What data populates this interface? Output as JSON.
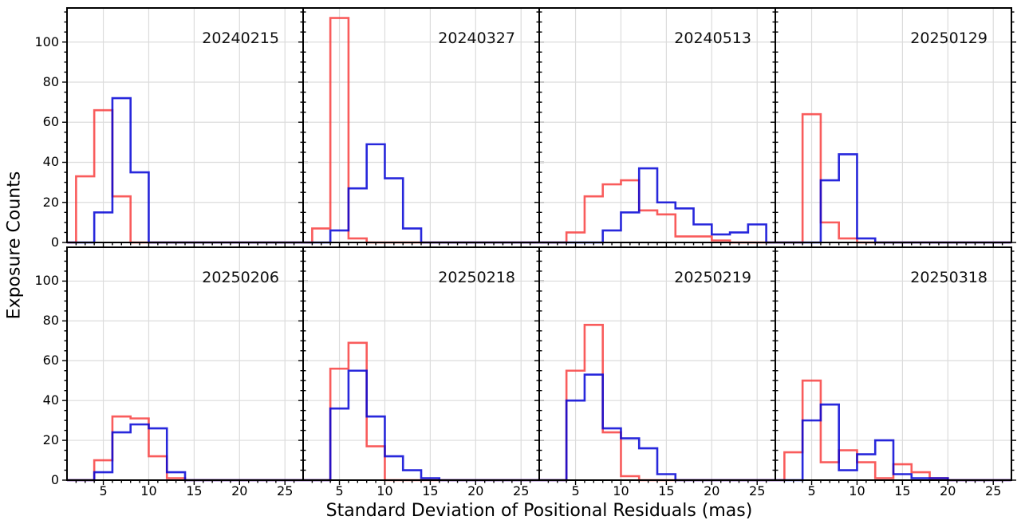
{
  "figure": {
    "xlabel": "Standard Deviation of Positional Residuals (mas)",
    "ylabel": "Exposure Counts"
  },
  "chart_data": {
    "type": "histogram",
    "description": "2x4 grid of overlaid step histograms, one panel per observation date",
    "xlabel": "Standard Deviation of Positional Residuals (mas)",
    "ylabel": "Exposure Counts",
    "xlim": [
      1,
      27
    ],
    "ylim": [
      0,
      117
    ],
    "x_major_ticks": [
      5,
      10,
      15,
      20,
      25
    ],
    "y_major_ticks": [
      0,
      20,
      40,
      60,
      80,
      100
    ],
    "x_minor_step": 1,
    "y_minor_step": 5,
    "grid": true,
    "bin_width": 2,
    "series_colors": {
      "red": "#f84040",
      "blue": "#0202d6"
    },
    "grid_color": "#dcdcdc",
    "spine_color": "#000000",
    "panels": [
      {
        "date": "20240215",
        "red": {
          "bin_start": 2,
          "counts": [
            33,
            66,
            23
          ]
        },
        "blue": {
          "bin_start": 4,
          "counts": [
            15,
            72,
            35
          ]
        }
      },
      {
        "date": "20240327",
        "red": {
          "bin_start": 2,
          "counts": [
            7,
            112,
            2
          ]
        },
        "blue": {
          "bin_start": 4,
          "counts": [
            6,
            27,
            49,
            32,
            7
          ]
        }
      },
      {
        "date": "20240513",
        "red": {
          "bin_start": 4,
          "counts": [
            5,
            23,
            29,
            31,
            16,
            14,
            3,
            3,
            1
          ]
        },
        "blue": {
          "bin_start": 8,
          "counts": [
            6,
            15,
            37,
            20,
            17,
            9,
            4,
            5,
            9
          ]
        }
      },
      {
        "date": "20250129",
        "red": {
          "bin_start": 4,
          "counts": [
            64,
            10,
            2
          ]
        },
        "blue": {
          "bin_start": 6,
          "counts": [
            31,
            44,
            2
          ]
        }
      },
      {
        "date": "20250206",
        "red": {
          "bin_start": 4,
          "counts": [
            10,
            32,
            31,
            12,
            1
          ]
        },
        "blue": {
          "bin_start": 4,
          "counts": [
            4,
            24,
            28,
            26,
            4
          ]
        }
      },
      {
        "date": "20250218",
        "red": {
          "bin_start": 4,
          "counts": [
            56,
            69,
            17
          ]
        },
        "blue": {
          "bin_start": 4,
          "counts": [
            36,
            55,
            32,
            12,
            5,
            1
          ]
        }
      },
      {
        "date": "20250219",
        "red": {
          "bin_start": 4,
          "counts": [
            55,
            78,
            24,
            2
          ]
        },
        "blue": {
          "bin_start": 4,
          "counts": [
            40,
            53,
            26,
            21,
            16,
            3
          ]
        }
      },
      {
        "date": "20250318",
        "red": {
          "bin_start": 2,
          "counts": [
            14,
            50,
            9,
            15,
            9,
            1,
            8,
            4,
            1
          ]
        },
        "blue": {
          "bin_start": 4,
          "counts": [
            30,
            38,
            5,
            13,
            20,
            3,
            1,
            1
          ]
        }
      }
    ]
  }
}
